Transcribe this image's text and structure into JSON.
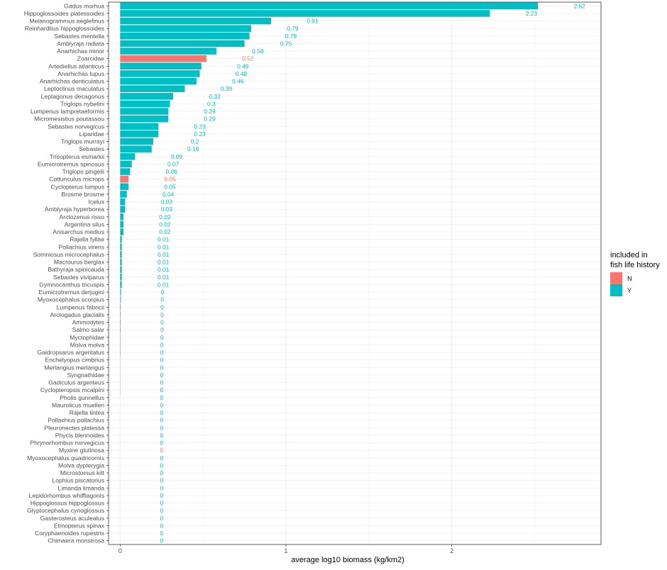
{
  "chart_data": {
    "type": "bar",
    "orientation": "horizontal",
    "xlabel": "average log10 biomass (kg/km2)",
    "ylabel": "",
    "xlim": [
      -0.07,
      2.9
    ],
    "x_ticks": [
      0,
      1,
      2
    ],
    "x_tick_labels": [
      "0",
      "1",
      "2"
    ],
    "grid": true,
    "legend": {
      "title": [
        "included in",
        "fish life history"
      ],
      "placement": "right",
      "entries": [
        {
          "key": "N",
          "label": "N",
          "color": "#F8766D"
        },
        {
          "key": "Y",
          "label": "Y",
          "color": "#00BFC4"
        }
      ]
    },
    "colors": {
      "N": "#F8766D",
      "Y": "#00BFC4",
      "panel_border": "#333333",
      "grid_major": "#ebebeb",
      "grid_minor": "#f5f5f5"
    },
    "categories": [
      "Gadus morhua",
      "Hippoglossoides platessoides",
      "Melanogrammus aeglefinus",
      "Reinhardtius hippoglossoides",
      "Sebastes mentella",
      "Amblyraja radiata",
      "Anarhichas minor",
      "Zoarcidae",
      "Artediellus atlanticus",
      "Anarhichas lupus",
      "Anarhichas denticulatus",
      "Leptoclinus maculatus",
      "Leptagonus decagonus",
      "Triglops nybelini",
      "Lumpenus lampretaeformis",
      "Micromesistius poutassou",
      "Sebastes norvegicus",
      "Liparidae",
      "Triglops murrayi",
      "Sebastes",
      "Trisopterus esmarkii",
      "Eumicrotremus spinosus",
      "Triglops pingelii",
      "Cottunculus microps",
      "Cyclopterus lumpus",
      "Brosme brosme",
      "Icelus",
      "Amblyraja hyperborea",
      "Arctozenus risso",
      "Argentina silus",
      "Anisarchus medius",
      "Rajella fyllae",
      "Pollachius virens",
      "Somniosus microcephalus",
      "Macrourus berglax",
      "Bathyraja spinicauda",
      "Sebastes viviparus",
      "Gymnocanthus tricuspis",
      "Eumicrotremus derjugini",
      "Myoxocephalus scorpius",
      "Lumpenus fabricii",
      "Arctogadus glacialis",
      "Ammodytes",
      "Salmo salar",
      "Myctophidae",
      "Molva molva",
      "Gaidropsarus argentatus",
      "Enchelyopus cimbrius",
      "Merlangius merlangus",
      "Syngnathidae",
      "Gadiculus argenteus",
      "Cyclopteropsis mcalpini",
      "Pholis gunnellus",
      "Maurolicus muelleri",
      "Rajella lintea",
      "Pollachius pollachius",
      "Pleuronectes platessa",
      "Phycis blennoides",
      "Phrynorhombus norvegicus",
      "Myxine glutinosa",
      "Myoxocephalus quadricornis",
      "Molva dypterygia",
      "Microstomus kitt",
      "Lophius piscatorius",
      "Limanda limanda",
      "Lepidorhombus whiffiagonis",
      "Hippoglossus hippoglossus",
      "Glyptocephalus cynoglossus",
      "Gasterosteus aculeatus",
      "Etmopterus spinax",
      "Coryphaenoides rupestris",
      "Chimaera monstrosa"
    ],
    "values": [
      2.52,
      2.23,
      0.91,
      0.79,
      0.78,
      0.75,
      0.58,
      0.52,
      0.49,
      0.48,
      0.46,
      0.39,
      0.32,
      0.3,
      0.29,
      0.29,
      0.23,
      0.23,
      0.2,
      0.19,
      0.09,
      0.07,
      0.06,
      0.05,
      0.05,
      0.04,
      0.03,
      0.03,
      0.02,
      0.02,
      0.02,
      0.01,
      0.01,
      0.01,
      0.01,
      0.01,
      0.01,
      0.01,
      0.005,
      0.004,
      0.003,
      0.003,
      0.003,
      0.003,
      0.002,
      0.002,
      0.002,
      0.001,
      0.001,
      0.001,
      0.001,
      0.001,
      0,
      0,
      0,
      0,
      0,
      0,
      0,
      0,
      0,
      0,
      0,
      0,
      0,
      0,
      0,
      0,
      0,
      0,
      0,
      0
    ],
    "labels": [
      "2.52",
      "2.23",
      "0.91",
      "0.79",
      "0.78",
      "0.75",
      "0.58",
      "0.52",
      "0.49",
      "0.48",
      "0.46",
      "0.39",
      "0.32",
      "0.3",
      "0.29",
      "0.29",
      "0.23",
      "0.23",
      "0.2",
      "0.19",
      "0.09",
      "0.07",
      "0.06",
      "0.05",
      "0.05",
      "0.04",
      "0.03",
      "0.03",
      "0.02",
      "0.02",
      "0.02",
      "0.01",
      "0.01",
      "0.01",
      "0.01",
      "0.01",
      "0.01",
      "0.01",
      "0",
      "0",
      "0",
      "0",
      "0",
      "0",
      "0",
      "0",
      "0",
      "0",
      "0",
      "0",
      "0",
      "0",
      "0",
      "0",
      "0",
      "0",
      "0",
      "0",
      "0",
      "0",
      "0",
      "0",
      "0",
      "0",
      "0",
      "0",
      "0",
      "0",
      "0",
      "0",
      "0",
      "0"
    ],
    "included": [
      "Y",
      "Y",
      "Y",
      "Y",
      "Y",
      "Y",
      "Y",
      "N",
      "Y",
      "Y",
      "Y",
      "Y",
      "Y",
      "Y",
      "Y",
      "Y",
      "Y",
      "Y",
      "Y",
      "Y",
      "Y",
      "Y",
      "Y",
      "N",
      "Y",
      "Y",
      "Y",
      "Y",
      "Y",
      "Y",
      "Y",
      "Y",
      "Y",
      "Y",
      "Y",
      "Y",
      "Y",
      "Y",
      "Y",
      "Y",
      "Y",
      "Y",
      "Y",
      "Y",
      "Y",
      "Y",
      "Y",
      "Y",
      "Y",
      "Y",
      "Y",
      "Y",
      "Y",
      "Y",
      "Y",
      "Y",
      "Y",
      "Y",
      "Y",
      "N",
      "Y",
      "Y",
      "Y",
      "Y",
      "Y",
      "Y",
      "Y",
      "Y",
      "Y",
      "Y",
      "Y",
      "Y"
    ]
  }
}
